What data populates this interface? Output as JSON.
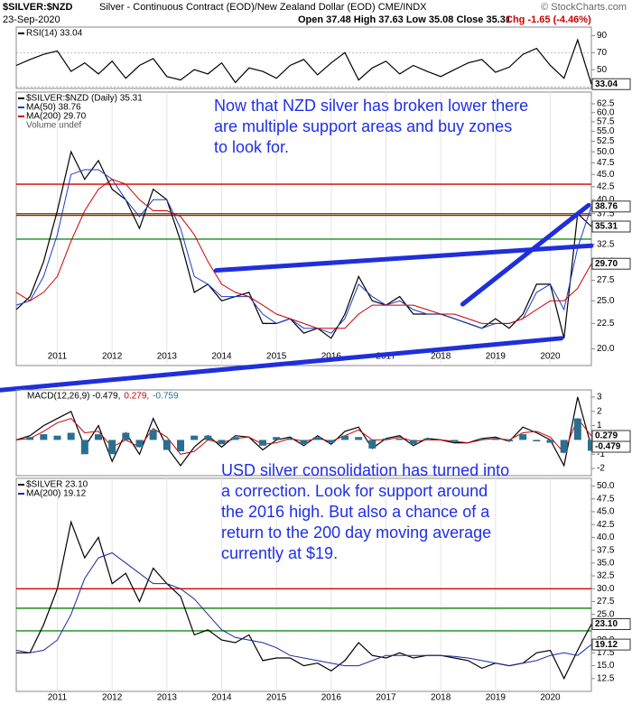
{
  "header": {
    "symbol": "$SILVER:$NZD",
    "description": "Silver - Continuous Contract (EOD)/New Zealand Dollar (EOD) CME/INDX",
    "date": "23-Sep-2020",
    "quote": "Open 37.48  High 37.63  Low 35.08  Close 35.31",
    "change": "Chg -1.65 (-4.46%)",
    "credit": "© StockCharts.com"
  },
  "chart_data": [
    {
      "type": "line",
      "legend": "stack",
      "x": [
        2010.25,
        2010.5,
        2010.75,
        2011,
        2011.25,
        2011.5,
        2011.75,
        2012,
        2012.25,
        2012.5,
        2012.75,
        2013,
        2013.25,
        2013.5,
        2013.75,
        2014,
        2014.25,
        2014.5,
        2014.75,
        2015,
        2015.25,
        2015.5,
        2015.75,
        2016,
        2016.25,
        2016.5,
        2016.75,
        2017,
        2017.25,
        2017.5,
        2017.75,
        2018,
        2018.25,
        2018.5,
        2018.75,
        2019,
        2019.25,
        2019.5,
        2019.75,
        2020,
        2020.25,
        2020.5,
        2020.75
      ],
      "xlim": [
        2010.25,
        2020.75
      ],
      "ylim": [
        28,
        100
      ],
      "yticks": [
        90,
        70,
        50
      ],
      "hlines": [
        {
          "value": 70,
          "color": "#999999"
        },
        {
          "value": 30,
          "color": "#999999"
        }
      ],
      "series": [
        {
          "name": "RSI(14) 33.04",
          "color": "#000000",
          "values": [
            55,
            62,
            68,
            72,
            48,
            58,
            45,
            60,
            40,
            55,
            63,
            42,
            38,
            50,
            45,
            58,
            35,
            52,
            48,
            40,
            55,
            62,
            44,
            58,
            70,
            38,
            52,
            60,
            45,
            55,
            48,
            42,
            50,
            58,
            62,
            47,
            53,
            68,
            75,
            55,
            40,
            85,
            33.04
          ]
        }
      ],
      "tags": [
        33.04
      ]
    },
    {
      "type": "line",
      "legend": "stack",
      "log": true,
      "volume_label": "Volume undef",
      "x": [
        2010.25,
        2010.5,
        2010.75,
        2011,
        2011.25,
        2011.5,
        2011.75,
        2012,
        2012.25,
        2012.5,
        2012.75,
        2013,
        2013.25,
        2013.5,
        2013.75,
        2014,
        2014.25,
        2014.5,
        2014.75,
        2015,
        2015.25,
        2015.5,
        2015.75,
        2016,
        2016.25,
        2016.5,
        2016.75,
        2017,
        2017.25,
        2017.5,
        2017.75,
        2018,
        2018.25,
        2018.5,
        2018.75,
        2019,
        2019.25,
        2019.5,
        2019.75,
        2020,
        2020.25,
        2020.5,
        2020.75
      ],
      "xlim": [
        2010.25,
        2020.75
      ],
      "xticks": [
        2011,
        2012,
        2013,
        2014,
        2015,
        2016,
        2017,
        2018,
        2019,
        2020
      ],
      "ylim": [
        18.5,
        66
      ],
      "yticks": [
        62.5,
        {
          "value": 60,
          "label": "60.0"
        },
        57.5,
        {
          "value": 55,
          "label": "55.0"
        },
        52.5,
        {
          "value": 50,
          "label": "50.0"
        },
        47.5,
        {
          "value": 45,
          "label": "45.0"
        },
        42.5,
        {
          "value": 40,
          "label": "40.0"
        },
        37.5,
        {
          "value": 35,
          "label": "35.0"
        },
        32.5,
        {
          "value": 30,
          "label": "30.0"
        },
        27.5,
        {
          "value": 25,
          "label": "25.0"
        },
        22.5,
        {
          "value": 20,
          "label": "20.0"
        }
      ],
      "hlines": [
        {
          "value": 43,
          "color": "#d40000"
        },
        {
          "value": 37.5,
          "color": "#1a8a1a"
        },
        {
          "value": 37.2,
          "color": "#d40000"
        },
        {
          "value": 33.3,
          "color": "#1a8a1a"
        }
      ],
      "trendlines": [
        {
          "color": "#1f2fdb",
          "points": [
            [
              2013.9,
              28.8
            ],
            [
              2020.75,
              32.3
            ]
          ]
        },
        {
          "color": "#1f2fdb",
          "points": [
            [
              2009.95,
              16.5
            ],
            [
              2020.2,
              21.0
            ]
          ]
        },
        {
          "color": "#1f2fdb",
          "points": [
            [
              2018.4,
              24.6
            ],
            [
              2020.7,
              39.0
            ]
          ]
        }
      ],
      "series": [
        {
          "name": "$SILVER:$NZD (Daily) 35.31",
          "color": "#000000",
          "values": [
            24,
            25.5,
            30,
            38,
            50,
            44,
            48,
            42,
            40,
            35,
            42,
            40,
            33,
            26,
            27,
            25,
            25.5,
            26,
            22.5,
            22.5,
            23,
            21.5,
            22,
            21,
            23.5,
            28,
            25,
            24.5,
            25.5,
            23.5,
            23.5,
            23.5,
            23,
            22.5,
            22,
            23,
            22,
            23.5,
            27,
            27,
            21,
            37.5,
            35.31
          ]
        },
        {
          "name": "MA(50) 38.76",
          "color": "#1a3cc8",
          "values": [
            24.5,
            25,
            28,
            34,
            45,
            46,
            46,
            44,
            40,
            37,
            40,
            40,
            35,
            28,
            27,
            25.5,
            25.5,
            25.5,
            23.5,
            22.5,
            23,
            22,
            22,
            21.5,
            23,
            27,
            25.5,
            24.5,
            25,
            24,
            23.5,
            23.5,
            23,
            22.5,
            22,
            22.5,
            22.5,
            23,
            26,
            27,
            24,
            32,
            38.76
          ]
        },
        {
          "name": "MA(200) 29.70",
          "color": "#cc0000",
          "values": [
            26,
            25,
            26,
            28,
            33,
            38,
            42,
            44,
            43,
            40,
            38,
            38,
            37,
            34,
            30,
            27,
            26,
            25.5,
            24.5,
            23.5,
            23,
            22.5,
            22,
            22,
            22,
            23.5,
            24.5,
            24.5,
            24.5,
            24.5,
            24,
            23.5,
            23.5,
            23,
            22.5,
            22.5,
            22.5,
            23,
            24,
            25,
            25,
            26.5,
            29.7
          ]
        }
      ],
      "tags": [
        38.76,
        35.31,
        {
          "value": 29.7,
          "label": "29.70"
        }
      ],
      "annotation": [
        "Now that NZD silver has broken lower there",
        "are multiple support areas and buy zones",
        "to look for."
      ]
    },
    {
      "type": "line",
      "legend": "inline",
      "x": [
        2010.25,
        2010.5,
        2010.75,
        2011,
        2011.25,
        2011.5,
        2011.75,
        2012,
        2012.25,
        2012.5,
        2012.75,
        2013,
        2013.25,
        2013.5,
        2013.75,
        2014,
        2014.25,
        2014.5,
        2014.75,
        2015,
        2015.25,
        2015.5,
        2015.75,
        2016,
        2016.25,
        2016.5,
        2016.75,
        2017,
        2017.25,
        2017.5,
        2017.75,
        2018,
        2018.25,
        2018.5,
        2018.75,
        2019,
        2019.25,
        2019.5,
        2019.75,
        2020,
        2020.25,
        2020.5,
        2020.75
      ],
      "xlim": [
        2010.25,
        2020.75
      ],
      "ylim": [
        -2.5,
        3.5
      ],
      "yticks": [
        3,
        2,
        1,
        0,
        -1,
        -2
      ],
      "series": [
        {
          "name": "MACD(12,26,9) -0.479,",
          "color": "#000000",
          "values": [
            0,
            0.3,
            1.0,
            1.5,
            2.0,
            -0.5,
            1.0,
            -1.5,
            0.5,
            -1.0,
            1.5,
            -0.5,
            -1.8,
            -0.5,
            0.3,
            -0.5,
            0.3,
            0.2,
            -0.7,
            0,
            0.2,
            -0.4,
            0.3,
            -0.3,
            0.6,
            0.9,
            -0.6,
            0.1,
            0.3,
            -0.4,
            0.1,
            0,
            -0.2,
            -0.2,
            0.1,
            0.2,
            -0.1,
            0.9,
            0.5,
            0,
            -1.8,
            3.0,
            -0.479
          ]
        },
        {
          "name": "0.279,",
          "color": "#cc0000",
          "values": [
            0,
            0.1,
            0.6,
            1.2,
            1.5,
            0.5,
            0.6,
            -0.5,
            0,
            -0.5,
            0.8,
            0.2,
            -1.0,
            -0.8,
            0,
            -0.2,
            0.1,
            0.2,
            -0.3,
            -0.2,
            0.1,
            -0.1,
            0.1,
            -0.1,
            0.3,
            0.7,
            0,
            0,
            0.2,
            -0.1,
            0,
            0,
            -0.1,
            -0.2,
            0,
            0.1,
            0,
            0.5,
            0.6,
            0.2,
            -0.9,
            1.5,
            0.279
          ]
        },
        {
          "name": "-0.759",
          "color": "#2a6f8f",
          "style": "bars",
          "values": [
            0,
            0.2,
            0.4,
            0.3,
            0.5,
            -1.0,
            0.4,
            -1.0,
            0.5,
            -0.5,
            0.7,
            -0.7,
            -0.8,
            0.3,
            0.3,
            -0.3,
            0.2,
            0,
            -0.4,
            0.2,
            0.1,
            -0.3,
            0.2,
            -0.2,
            0.3,
            0.2,
            -0.6,
            0.1,
            0.1,
            -0.3,
            0.1,
            0,
            -0.1,
            0,
            0.1,
            0.1,
            -0.1,
            0.4,
            -0.1,
            -0.2,
            -0.9,
            1.5,
            -0.759
          ]
        }
      ],
      "tags": [
        0.279,
        -0.479
      ]
    },
    {
      "type": "line",
      "legend": "stack",
      "x": [
        2010.25,
        2010.5,
        2010.75,
        2011,
        2011.25,
        2011.5,
        2011.75,
        2012,
        2012.25,
        2012.5,
        2012.75,
        2013,
        2013.25,
        2013.5,
        2013.75,
        2014,
        2014.25,
        2014.5,
        2014.75,
        2015,
        2015.25,
        2015.5,
        2015.75,
        2016,
        2016.25,
        2016.5,
        2016.75,
        2017,
        2017.25,
        2017.5,
        2017.75,
        2018,
        2018.25,
        2018.5,
        2018.75,
        2019,
        2019.25,
        2019.5,
        2019.75,
        2020,
        2020.25,
        2020.5,
        2020.75
      ],
      "xlim": [
        2010.25,
        2020.75
      ],
      "xticks": [
        2011,
        2012,
        2013,
        2014,
        2015,
        2016,
        2017,
        2018,
        2019,
        2020
      ],
      "ylim": [
        10,
        51.5
      ],
      "yticks": [
        {
          "value": 50,
          "label": "50.0"
        },
        47.5,
        {
          "value": 45,
          "label": "45.0"
        },
        42.5,
        {
          "value": 40,
          "label": "40.0"
        },
        37.5,
        {
          "value": 35,
          "label": "35.0"
        },
        32.5,
        {
          "value": 30,
          "label": "30.0"
        },
        27.5,
        {
          "value": 25,
          "label": "25.0"
        },
        22.5,
        {
          "value": 20,
          "label": "20.0"
        },
        17.5,
        {
          "value": 15,
          "label": "15.0"
        },
        12.5
      ],
      "hlines": [
        {
          "value": 30,
          "color": "#d40000"
        },
        {
          "value": 26.2,
          "color": "#1a8a1a"
        },
        {
          "value": 21.8,
          "color": "#1a8a1a"
        }
      ],
      "series": [
        {
          "name": "$SILVER 23.10",
          "color": "#000000",
          "values": [
            17.5,
            17.5,
            23,
            30,
            43,
            36,
            40,
            31,
            33,
            27.5,
            34,
            31,
            28.5,
            21,
            22,
            20,
            19.5,
            21,
            16,
            16.5,
            16.5,
            15,
            15.5,
            14,
            16,
            19.5,
            17,
            16.5,
            17.5,
            16.5,
            17,
            17,
            16.5,
            16,
            14.5,
            15.5,
            15,
            15.5,
            17.5,
            18,
            12.5,
            18,
            23.1
          ]
        },
        {
          "name": "MA(200) 19.12",
          "color": "#1a2a9a",
          "values": [
            18,
            17.5,
            18,
            20,
            25,
            32,
            36,
            37,
            35,
            33,
            31,
            31,
            30,
            28,
            25,
            22,
            20.5,
            20,
            19.5,
            18.5,
            17,
            16.5,
            16,
            15.5,
            15,
            15,
            16,
            17,
            17,
            17,
            17,
            17,
            16.8,
            16.5,
            16,
            15.5,
            15,
            15.5,
            16,
            17,
            17.5,
            17,
            19.12
          ]
        }
      ],
      "tags": [
        {
          "value": 23.1,
          "label": "23.10"
        },
        19.12
      ],
      "annotation": [
        "USD silver consolidation has turned into",
        "a correction. Look for support around",
        "the 2016 high. But also a chance of a",
        "return to the 200 day moving average",
        "currently at $19."
      ]
    }
  ]
}
